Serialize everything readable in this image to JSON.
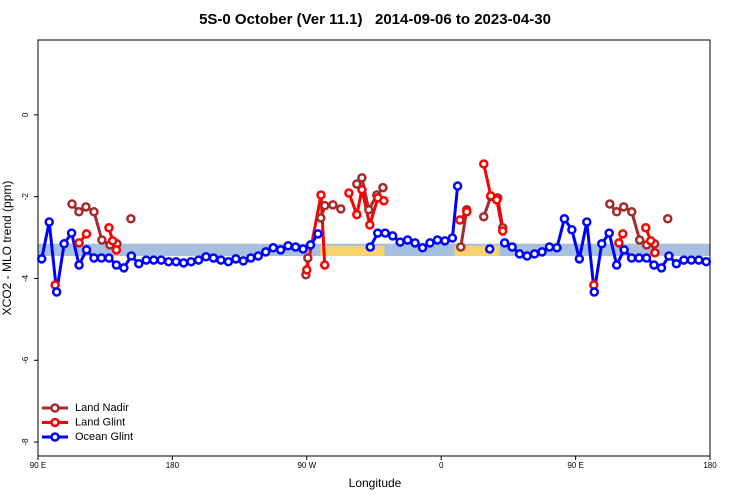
{
  "chart_data": {
    "type": "line",
    "title": "5S-0 October (Ver 11.1)   2014-09-06 to 2023-04-30",
    "x_label": "Longitude",
    "y_label": "XCO2 - MLO trend (ppm)",
    "xlim": [
      90,
      540
    ],
    "ylim": [
      -8.34,
      1.83
    ],
    "xticks": [
      {
        "value": 90,
        "label": "90 E"
      },
      {
        "value": 180,
        "label": "180"
      },
      {
        "value": 270,
        "label": "90 W"
      },
      {
        "value": 360,
        "label": "0"
      },
      {
        "value": 450,
        "label": "90 E"
      },
      {
        "value": 540,
        "label": "180"
      }
    ],
    "yticks": [
      0,
      -2,
      -4,
      -6,
      -8
    ],
    "legend": "bottom-left",
    "bands": [
      {
        "color": "#a7bfe0",
        "x": [
          90,
          540
        ],
        "y": [
          -3.15,
          -3.45
        ]
      },
      {
        "color": "#f9d36d",
        "x": [
          279,
          322
        ],
        "y": [
          -3.2,
          -3.45
        ]
      },
      {
        "color": "#f9d36d",
        "x": [
          369,
          399
        ],
        "y": [
          -3.2,
          -3.45
        ]
      }
    ],
    "series": [
      {
        "name": "Land Nadir",
        "color": "#a52a2a",
        "x": [
          112.8,
          117.4,
          122.1,
          127.5,
          132.8,
          138.2,
          142.9,
          null,
          152.2,
          null,
          269.4,
          270.7,
          null,
          279.4,
          282.1,
          287.5,
          292.8,
          null,
          303.5,
          306.9,
          311.5,
          316.9,
          321,
          null,
          373.1,
          377.1,
          null,
          388.5,
          393.2,
          397.9,
          401.2,
          null,
          472.9,
          477.5,
          482.2,
          487.6,
          492.9,
          497.6,
          502.9,
          null,
          511.7
        ],
        "values": [
          -2.18,
          -2.37,
          -2.25,
          -2.37,
          -3.06,
          -3.18,
          -3.15,
          null,
          -2.54,
          null,
          -3.91,
          -3.5,
          null,
          -2.52,
          -2.22,
          -2.2,
          -2.3,
          null,
          -1.69,
          -1.54,
          -2.32,
          -1.96,
          -1.78,
          null,
          -3.23,
          -2.32,
          null,
          -2.49,
          -2.0,
          -2.03,
          -2.76,
          null,
          -2.18,
          -2.37,
          -2.25,
          -2.37,
          -3.06,
          -3.18,
          -3.15,
          null,
          -2.54
        ]
      },
      {
        "name": "Land Glint",
        "color": "#ff0000",
        "x": [
          101.5,
          null,
          117.5,
          122.5,
          null,
          137.5,
          140,
          142.5,
          null,
          270,
          279.5,
          282,
          null,
          298.2,
          303.5,
          306.9,
          312.2,
          317.6,
          321.6,
          null,
          372.5,
          377.1,
          null,
          388.5,
          393.2,
          397.2,
          401.2,
          null,
          462.2,
          null,
          479,
          481.6,
          null,
          497,
          500.3,
          503.1
        ],
        "values": [
          -4.16,
          null,
          -3.13,
          -2.91,
          null,
          -2.76,
          -3.08,
          -3.3,
          null,
          -3.79,
          -1.96,
          -3.67,
          null,
          -1.91,
          -2.44,
          -1.83,
          -2.69,
          -2.03,
          -2.1,
          null,
          -2.57,
          -2.37,
          null,
          -1.2,
          -1.98,
          -2.08,
          -2.84,
          null,
          -4.16,
          null,
          -3.13,
          -2.91,
          null,
          -2.76,
          -3.08,
          -3.37
        ]
      },
      {
        "name": "Ocean Glint",
        "color": "#0000ff",
        "x": [
          92.5,
          97.5,
          102.5,
          107.5,
          112.5,
          117.5,
          122.5,
          127.5,
          132.5,
          137.5,
          142.5,
          147.5,
          152.5,
          157.5,
          162.5,
          167.5,
          172.5,
          177.5,
          182.5,
          187.5,
          192.5,
          197.5,
          202.5,
          207.5,
          212.5,
          217.5,
          222.5,
          227.5,
          232.5,
          237.5,
          242.5,
          247.5,
          252.5,
          257.5,
          262.5,
          267.5,
          272.5,
          277.5,
          null,
          312.5,
          317.5,
          322.5,
          327.5,
          332.5,
          337.5,
          342.5,
          347.5,
          352.5,
          357.5,
          362.5,
          367.5,
          371,
          null,
          392.5,
          null,
          402.5,
          407.5,
          412.5,
          417.5,
          422.5,
          427.5,
          432.5,
          437.5,
          442.5,
          447.5,
          452.5,
          457.5,
          462.5,
          467.5,
          472.5,
          477.5,
          482.5,
          487.5,
          492.5,
          497.5,
          502.5,
          507.5,
          512.5,
          517.5,
          522.5,
          527.5,
          532.5,
          537.5
        ],
        "values": [
          -3.52,
          -2.62,
          -4.33,
          -3.15,
          -2.89,
          -3.67,
          -3.3,
          -3.5,
          -3.5,
          -3.5,
          -3.67,
          -3.74,
          -3.45,
          -3.64,
          -3.55,
          -3.55,
          -3.55,
          -3.59,
          -3.59,
          -3.62,
          -3.59,
          -3.55,
          -3.47,
          -3.5,
          -3.55,
          -3.59,
          -3.52,
          -3.57,
          -3.5,
          -3.45,
          -3.35,
          -3.25,
          -3.3,
          -3.2,
          -3.23,
          -3.28,
          -3.18,
          -2.91,
          null,
          -3.23,
          -2.89,
          -2.89,
          -2.96,
          -3.11,
          -3.06,
          -3.13,
          -3.25,
          -3.13,
          -3.06,
          -3.08,
          -3.01,
          -1.74,
          null,
          -3.28,
          null,
          -3.13,
          -3.23,
          -3.4,
          -3.45,
          -3.4,
          -3.35,
          -3.23,
          -3.25,
          -2.54,
          -2.81,
          -3.52,
          -2.62,
          -4.33,
          -3.15,
          -2.89,
          -3.67,
          -3.3,
          -3.5,
          -3.5,
          -3.5,
          -3.67,
          -3.74,
          -3.45,
          -3.64,
          -3.55,
          -3.55,
          -3.55,
          -3.59
        ]
      }
    ]
  }
}
